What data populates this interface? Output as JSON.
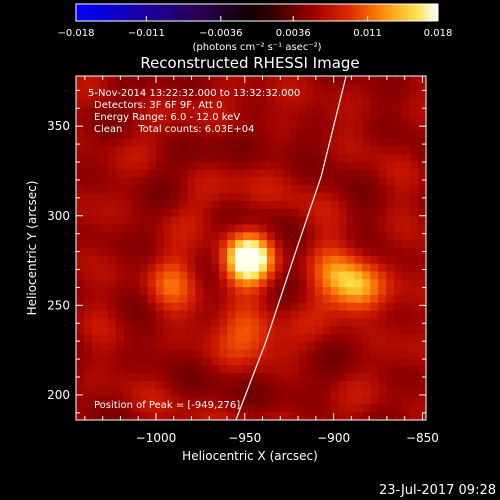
{
  "chart_data": {
    "type": "heatmap",
    "title": "Reconstructed RHESSI Image",
    "xlabel": "Heliocentric X (arcsec)",
    "ylabel": "Heliocentric Y (arcsec)",
    "xlim": [
      -1045,
      -848
    ],
    "ylim": [
      186,
      378
    ],
    "xticks": [
      -1000,
      -950,
      -900,
      -850
    ],
    "xtick_labels": [
      "−1000",
      "−950",
      "−900",
      "−850"
    ],
    "yticks": [
      200,
      250,
      300,
      350
    ],
    "ytick_labels": [
      "200",
      "250",
      "300",
      "350"
    ],
    "colorbar": {
      "min": -0.018,
      "max": 0.018,
      "tick_values": [
        -0.018,
        -0.011,
        -0.0036,
        0.0036,
        0.011,
        0.018
      ],
      "tick_labels": [
        "−0.018",
        "−0.011",
        "−0.0036",
        "0.0036",
        "0.011",
        "0.018"
      ],
      "unit_label": "(photons cm⁻² s⁻¹ asec⁻²)"
    },
    "annotations": [
      "5-Nov-2014 13:22:32.000 to 13:32:32.000",
      "Detectors: 3F 6F 9F, Att 0",
      "Energy Range: 6.0 - 12.0 keV",
      "Clean     Total counts: 6.03E+04"
    ],
    "peak_label": "Position of Peak = [-949,276]",
    "sources": [
      {
        "x": -949,
        "y": 276,
        "amplitude": 1.0
      },
      {
        "x": -885,
        "y": 259,
        "amplitude": 0.62
      },
      {
        "x": -948,
        "y": 238,
        "amplitude": 0.42
      },
      {
        "x": -900,
        "y": 268,
        "amplitude": 0.32
      },
      {
        "x": -993,
        "y": 262,
        "amplitude": 0.3
      }
    ],
    "limb_curve": [
      {
        "x": -955,
        "y": 186
      },
      {
        "x": -938,
        "y": 230
      },
      {
        "x": -922,
        "y": 278
      },
      {
        "x": -907,
        "y": 322
      },
      {
        "x": -893,
        "y": 378
      }
    ]
  },
  "footer_timestamp": "23-Jul-2017 09:28"
}
